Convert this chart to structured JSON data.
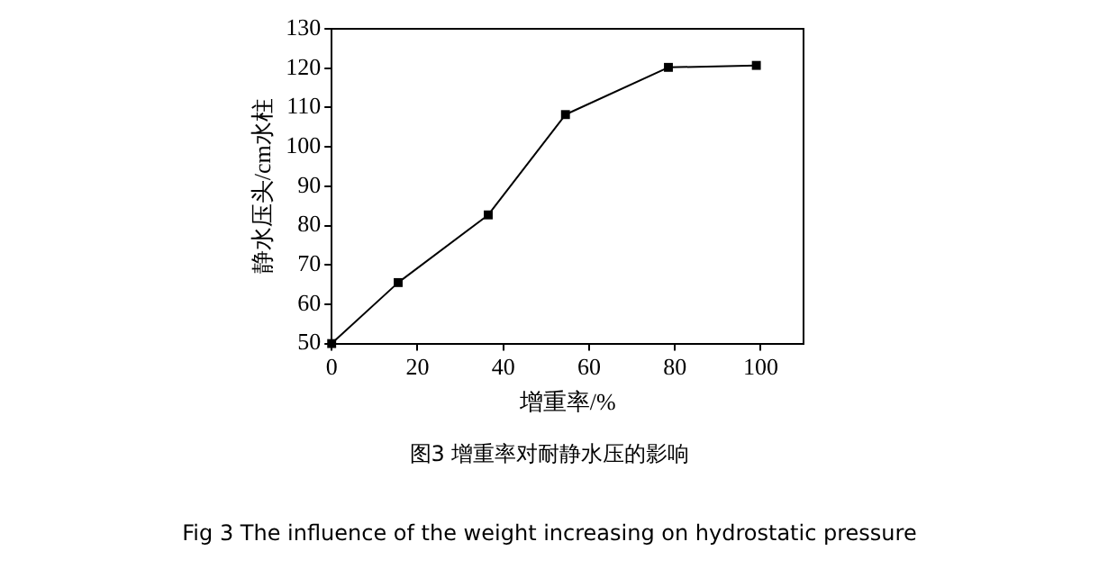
{
  "chart_data": {
    "type": "line",
    "xlabel": "增重率/%",
    "ylabel": "静水压头/cm水柱",
    "x": [
      0,
      15.5,
      36.5,
      54.5,
      78.5,
      99
    ],
    "values": [
      50,
      65.5,
      82.7,
      108.2,
      120.2,
      120.7
    ],
    "color": "#000000",
    "marker": "square",
    "line_style": "solid",
    "grid": false,
    "legend": false,
    "xlim": [
      0,
      110
    ],
    "xticks": [
      0,
      20,
      40,
      60,
      80,
      100
    ],
    "ylim": [
      50,
      130
    ],
    "yticks": [
      50,
      60,
      70,
      80,
      90,
      100,
      110,
      120,
      130
    ],
    "annotations": [
      "图3 增重率对耐静水压的影响",
      "Fig 3 The influence of the weight increasing on hydrostatic pressure"
    ]
  }
}
